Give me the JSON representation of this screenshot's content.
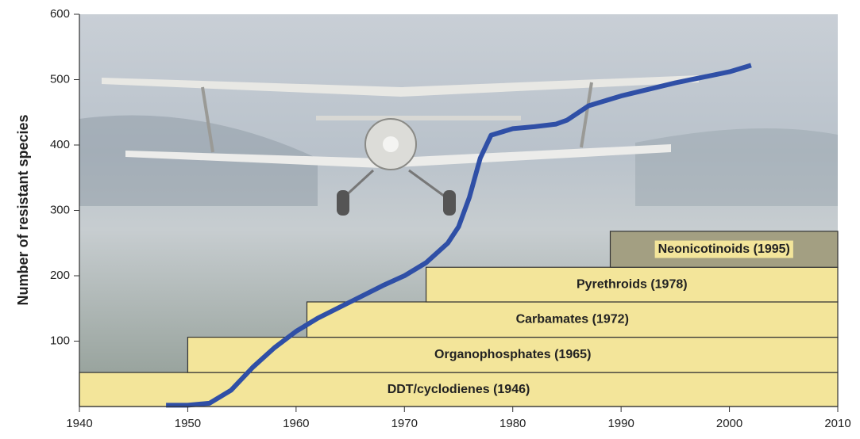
{
  "chart_data": {
    "type": "line",
    "y_label": "Number of resistant species",
    "xlim": [
      1940,
      2010
    ],
    "xticks": [
      1940,
      1950,
      1960,
      1970,
      1980,
      1990,
      2000,
      2010
    ],
    "ylim": [
      0,
      600
    ],
    "yticks": [
      100,
      200,
      300,
      400,
      500,
      600
    ],
    "series": [
      {
        "color": "#2f4fa6",
        "x": [
          1948,
          1950,
          1952,
          1954,
          1956,
          1958,
          1960,
          1962,
          1965,
          1968,
          1970,
          1972,
          1974,
          1975,
          1976,
          1977,
          1978,
          1980,
          1982,
          1984,
          1985,
          1987,
          1990,
          1995,
          2000,
          2002
        ],
        "values": [
          2,
          2,
          5,
          25,
          60,
          90,
          115,
          135,
          160,
          185,
          200,
          220,
          250,
          275,
          320,
          380,
          415,
          425,
          428,
          432,
          438,
          460,
          475,
          495,
          512,
          522
        ]
      }
    ],
    "bands": [
      {
        "label": "DDT/cyclodienes (1946)",
        "start": 1940,
        "height": 52,
        "color": "#f3e59a"
      },
      {
        "label": "Organophosphates (1965)",
        "start": 1950,
        "height": 54,
        "color": "#f3e59a"
      },
      {
        "label": "Carbamates (1972)",
        "start": 1961,
        "height": 54,
        "color": "#f3e59a"
      },
      {
        "label": "Pyrethroids (1978)",
        "start": 1972,
        "height": 53,
        "color": "#f3e59a"
      },
      {
        "label": "Neonicotinoids (1995)",
        "start": 1989,
        "height": 55,
        "color": "#a39f82"
      }
    ]
  }
}
